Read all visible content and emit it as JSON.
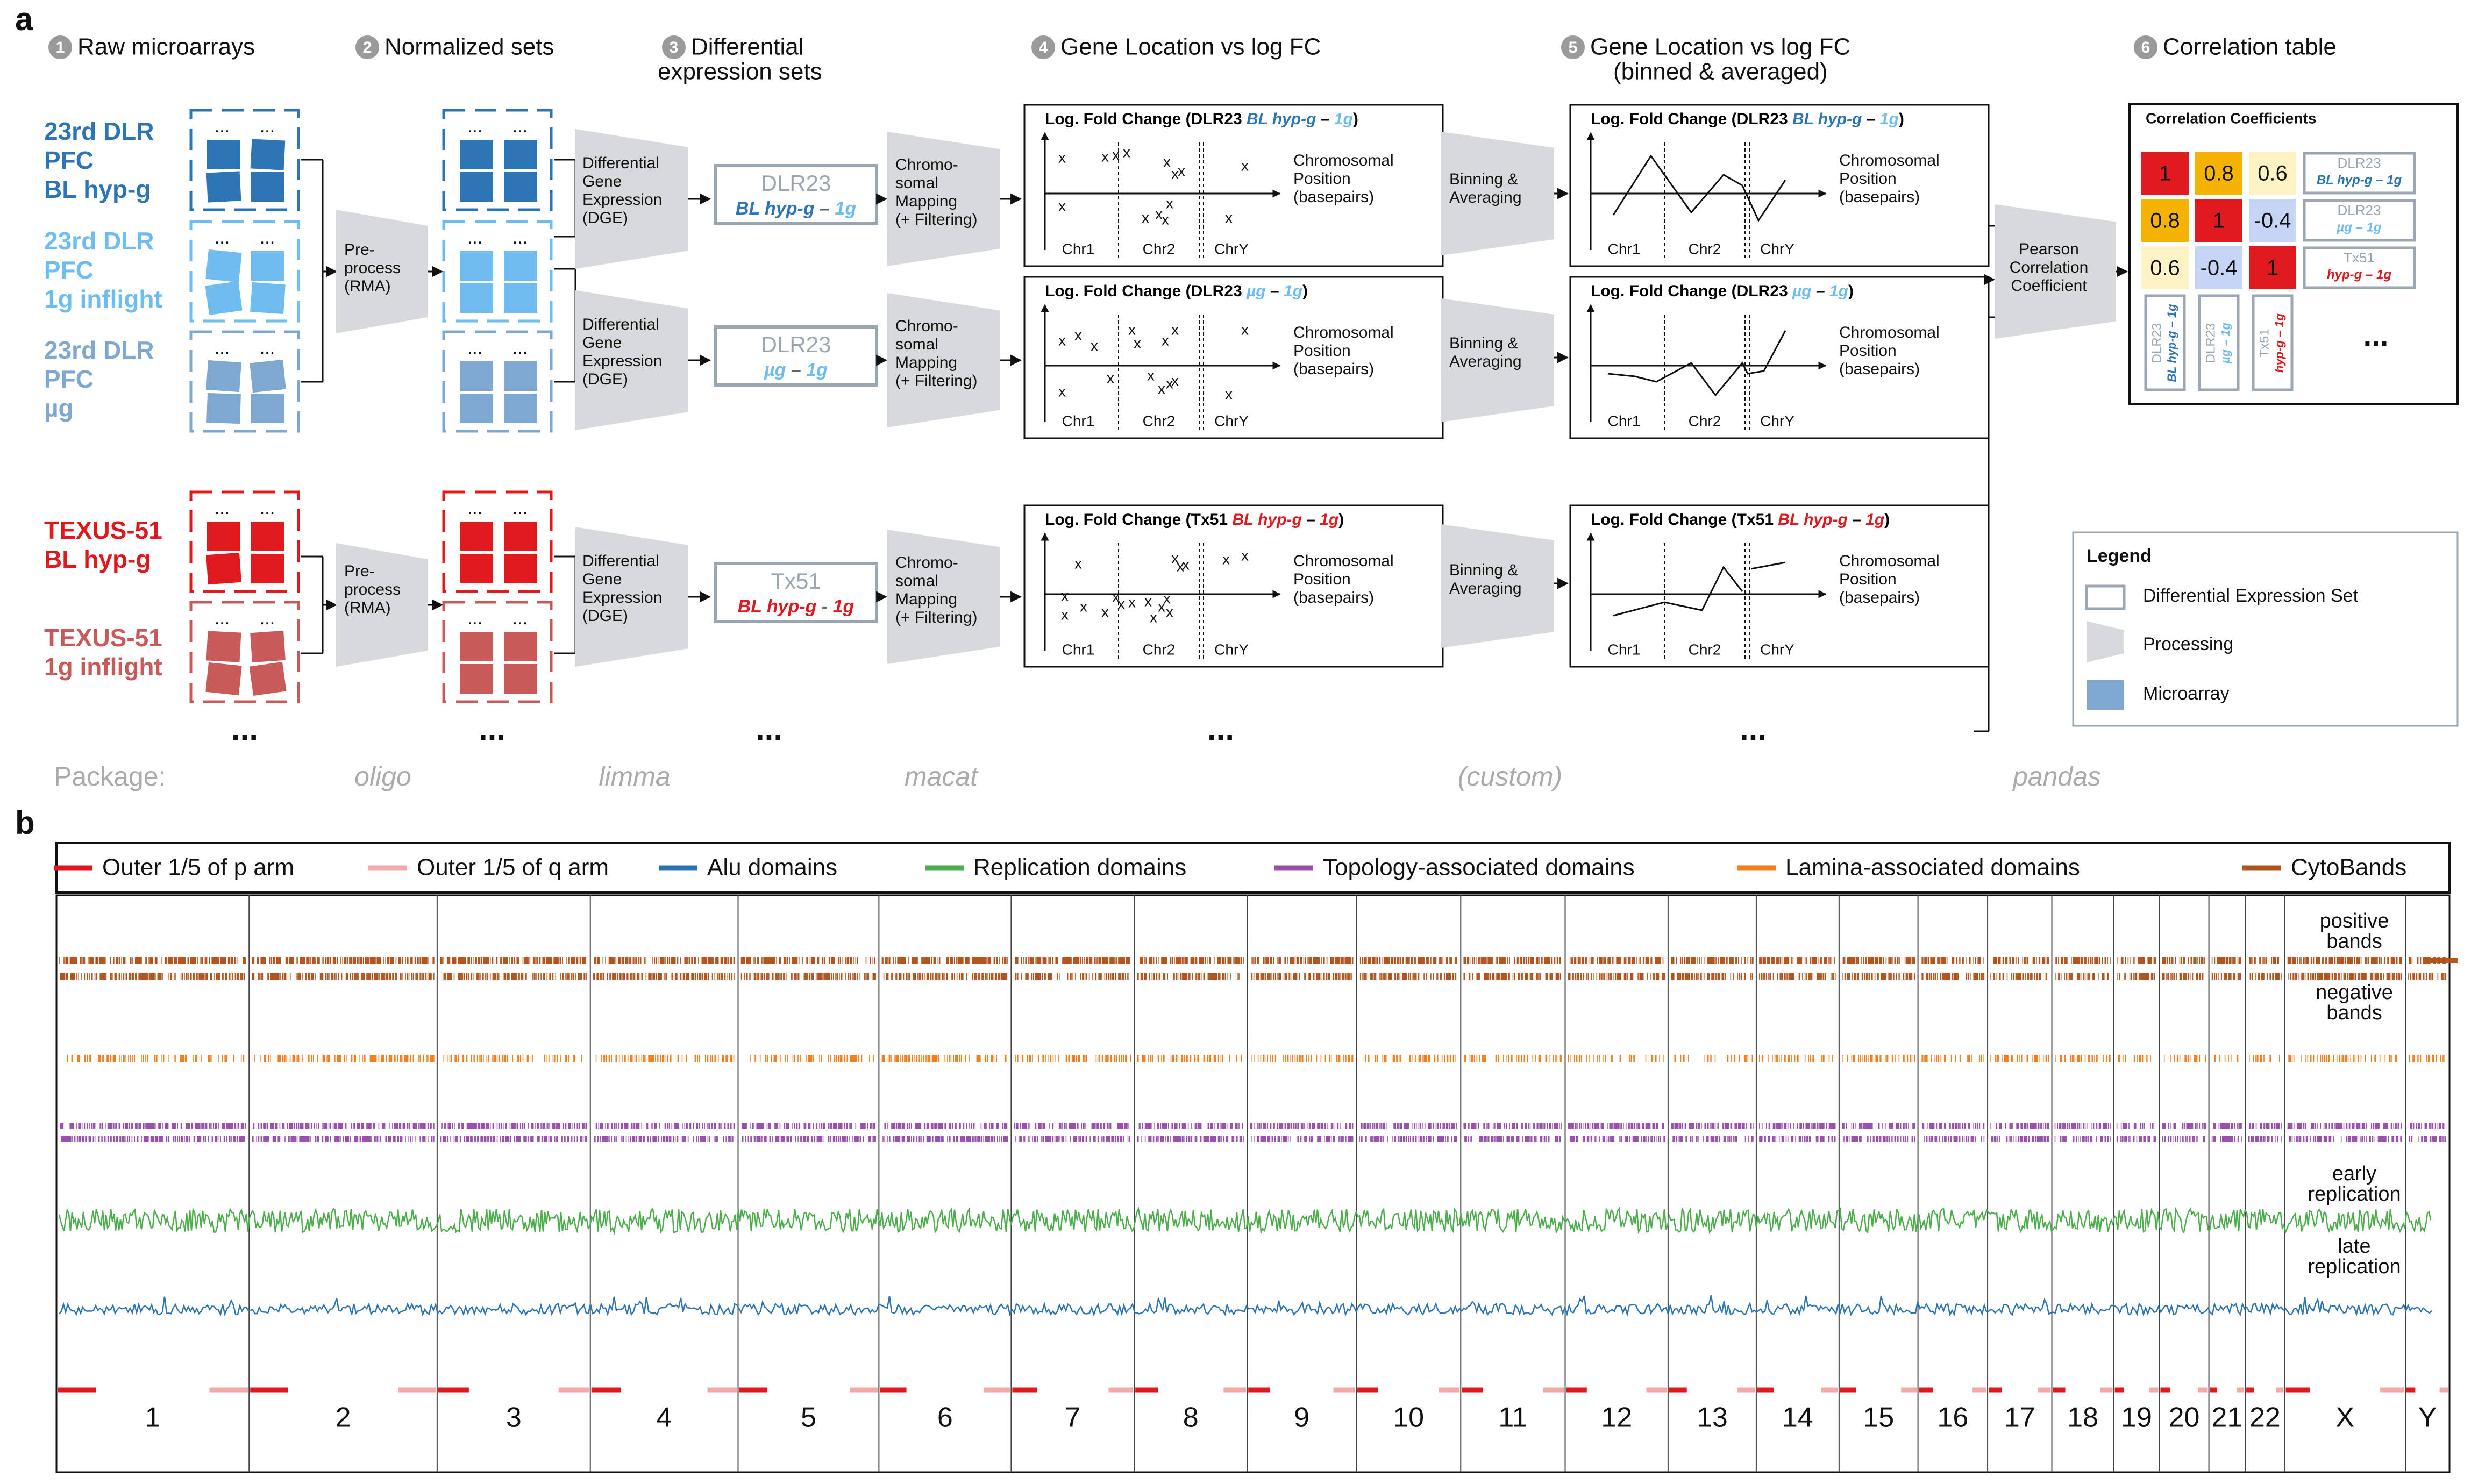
{
  "panel_a": {
    "label": "a",
    "steps": [
      {
        "num": "1",
        "title": "Raw microarrays"
      },
      {
        "num": "2",
        "title": "Normalized sets"
      },
      {
        "num": "3",
        "title": "Differential",
        "title2": "expression sets"
      },
      {
        "num": "4",
        "title": "Gene Location vs log FC"
      },
      {
        "num": "5",
        "title": "Gene Location vs log FC",
        "title2": "(binned & averaged)"
      },
      {
        "num": "6",
        "title": "Correlation table"
      }
    ],
    "sample_groups": [
      {
        "lines": [
          "23rd DLR",
          "PFC",
          "BL hyp-g"
        ],
        "color": "#2e75b6"
      },
      {
        "lines": [
          "23rd DLR",
          "PFC",
          "1g inflight"
        ],
        "color": "#6fbcf0"
      },
      {
        "lines": [
          "23rd DLR",
          "PFC",
          "µg"
        ],
        "color": "#7fa8d0"
      },
      {
        "lines": [
          "TEXUS-51",
          "BL hyp-g"
        ],
        "color": "#e0191e"
      },
      {
        "lines": [
          "TEXUS-51",
          "1g inflight"
        ],
        "color": "#c85a5a"
      }
    ],
    "preprocess": [
      "Pre-",
      "process",
      "(RMA)"
    ],
    "dge": [
      "Differential",
      "Gene",
      "Expression",
      "(DGE)"
    ],
    "chrom_mapping": [
      "Chromo-",
      "somal",
      "Mapping",
      "(+ Filtering)"
    ],
    "binning": [
      "Binning &",
      "Averaging"
    ],
    "de_sets": [
      {
        "name": "DLR23",
        "cond_a": "BL hyp-g",
        "sep": " – ",
        "cond_b": "1g",
        "name_color": "#9aa6b2",
        "a_color": "#2e75b6",
        "b_color": "#6fbcf0"
      },
      {
        "name": "DLR23",
        "cond_a": "µg",
        "sep": " – ",
        "cond_b": "1g",
        "name_color": "#9aa6b2",
        "a_color": "#6fbcf0",
        "b_color": "#6fbcf0"
      },
      {
        "name": "Tx51",
        "cond_a": "BL hyp-g",
        "sep": " - ",
        "cond_b": "1g",
        "name_color": "#9aa6b2",
        "a_color": "#e0191e",
        "b_color": "#e0191e"
      }
    ],
    "plot_title_prefix": "Log. Fold Change (",
    "plot_titles": [
      {
        "name": "DLR23 ",
        "a": "BL hyp-g",
        "sep": " – ",
        "b": "1g",
        "a_color": "#2e75b6",
        "b_color": "#6fbcf0"
      },
      {
        "name": "DLR23 ",
        "a": "µg",
        "sep": " – ",
        "b": "1g",
        "a_color": "#6fbcf0",
        "b_color": "#6fbcf0"
      },
      {
        "name": "Tx51 ",
        "a": "BL hyp-g",
        "sep": " – ",
        "b": "1g",
        "a_color": "#e0191e",
        "b_color": "#e0191e"
      }
    ],
    "plot_axis_label": [
      "Chromosomal",
      "Position",
      "(basepairs)"
    ],
    "chr_labels": [
      "Chr1",
      "Chr2",
      "ChrY"
    ],
    "point_marker": "x",
    "pearson": [
      "Pearson",
      "Correlation",
      "Coefficient"
    ],
    "correlation": {
      "title": "Correlation Coefficients",
      "matrix": [
        [
          "1",
          "0.8",
          "0.6"
        ],
        [
          "0.8",
          "1",
          "-0.4"
        ],
        [
          "0.6",
          "-0.4",
          "1"
        ]
      ],
      "cell_colors": [
        [
          "#e0191e",
          "#f5b301",
          "#fdf2c4"
        ],
        [
          "#f5b301",
          "#e0191e",
          "#c6d4f5"
        ],
        [
          "#fdf2c4",
          "#c6d4f5",
          "#e0191e"
        ]
      ],
      "row_labels": [
        {
          "name": "DLR23",
          "cond": "BL hyp-g – 1g"
        },
        {
          "name": "DLR23",
          "cond": "µg – 1g"
        },
        {
          "name": "Tx51",
          "cond": "hyp-g – 1g"
        }
      ],
      "col_labels": [
        {
          "name": "DLR23",
          "cond": "BL hyp-g – 1g"
        },
        {
          "name": "DLR23",
          "cond": "µg – 1g"
        },
        {
          "name": "Tx51",
          "cond": "hyp-g – 1g"
        }
      ],
      "ellipsis": "..."
    },
    "legend": {
      "title": "Legend",
      "items": [
        "Differential Expression Set",
        "Processing",
        "Microarray"
      ]
    },
    "dots": "...",
    "package_label": "Package:",
    "packages": [
      "oligo",
      "limma",
      "macat",
      "(custom)",
      "pandas"
    ]
  },
  "panel_b": {
    "label": "b",
    "legend": [
      {
        "label": "Outer 1/5 of p arm",
        "color": "#e0191e"
      },
      {
        "label": "Outer 1/5 of q arm",
        "color": "#f4a9a9"
      },
      {
        "label": "Alu domains",
        "color": "#2e75b6"
      },
      {
        "label": "Replication domains",
        "color": "#4cae4c"
      },
      {
        "label": "Topology-associated domains",
        "color": "#9b4fb0"
      },
      {
        "label": "Lamina-associated domains",
        "color": "#f07f1e"
      },
      {
        "label": "CytoBands",
        "color": "#b5541c"
      }
    ],
    "track_labels": [
      [
        "positive",
        "bands"
      ],
      [
        "negative",
        "bands"
      ],
      [
        "early",
        "replication"
      ],
      [
        "late",
        "replication"
      ]
    ],
    "chromosomes": [
      "1",
      "2",
      "3",
      "4",
      "5",
      "6",
      "7",
      "8",
      "9",
      "10",
      "11",
      "12",
      "13",
      "14",
      "15",
      "16",
      "17",
      "18",
      "19",
      "20",
      "21",
      "22",
      "X",
      "Y"
    ],
    "chromosome_relative_lengths": [
      249,
      243,
      198,
      191,
      182,
      171,
      159,
      146,
      141,
      135,
      135,
      133,
      114,
      107,
      102,
      90,
      83,
      80,
      59,
      64,
      47,
      51,
      156,
      57
    ]
  }
}
